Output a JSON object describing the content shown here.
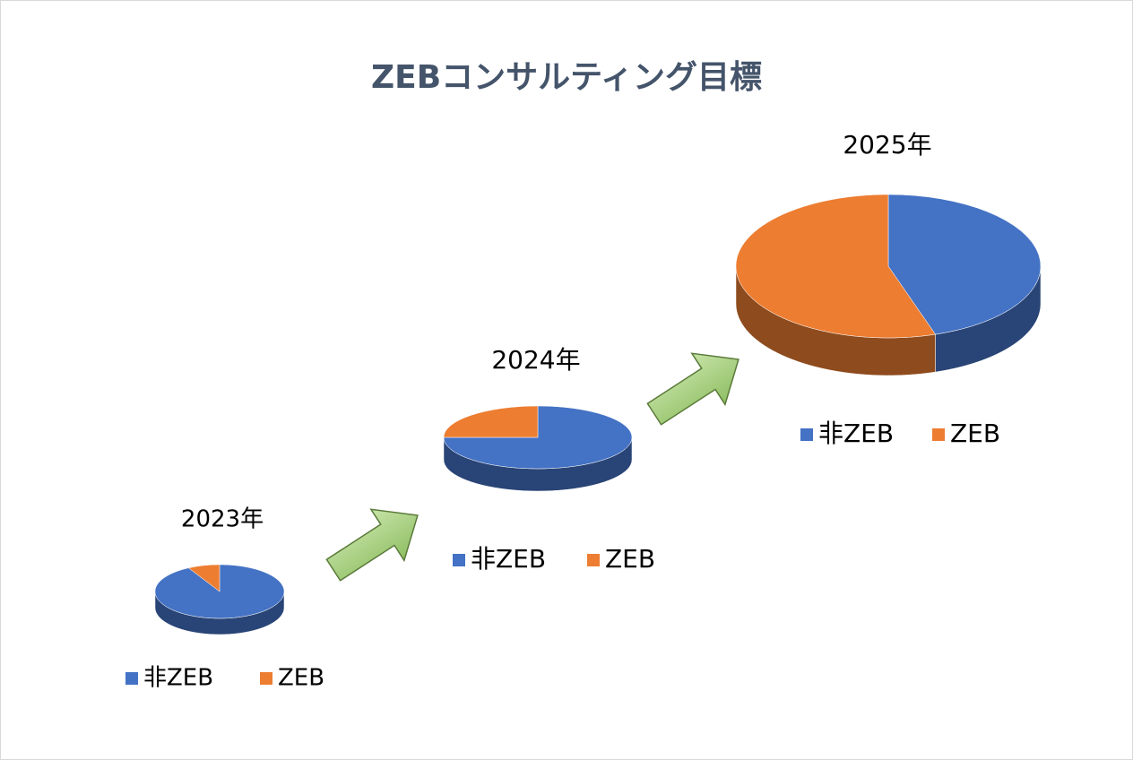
{
  "title": "ZEBコンサルティング目標",
  "chart_data": [
    {
      "type": "pie3d",
      "title": "2023年",
      "categories": [
        "非ZEB",
        "ZEB"
      ],
      "values": [
        92,
        8
      ],
      "colors": [
        "#4472c4",
        "#ed7d31"
      ]
    },
    {
      "type": "pie3d",
      "title": "2024年",
      "categories": [
        "非ZEB",
        "ZEB"
      ],
      "values": [
        75,
        25
      ],
      "colors": [
        "#4472c4",
        "#ed7d31"
      ]
    },
    {
      "type": "pie3d",
      "title": "2025年",
      "categories": [
        "非ZEB",
        "ZEB"
      ],
      "values": [
        45,
        55
      ],
      "colors": [
        "#4472c4",
        "#ed7d31"
      ]
    }
  ]
}
